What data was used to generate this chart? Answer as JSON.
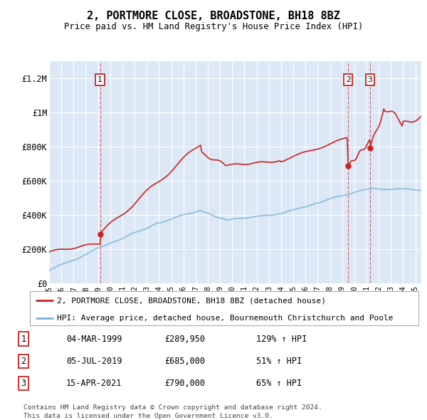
{
  "title": "2, PORTMORE CLOSE, BROADSTONE, BH18 8BZ",
  "subtitle": "Price paid vs. HM Land Registry's House Price Index (HPI)",
  "plot_bg_color": "#dce8f5",
  "red_line_label": "2, PORTMORE CLOSE, BROADSTONE, BH18 8BZ (detached house)",
  "blue_line_label": "HPI: Average price, detached house, Bournemouth Christchurch and Poole",
  "footer": "Contains HM Land Registry data © Crown copyright and database right 2024.\nThis data is licensed under the Open Government Licence v3.0.",
  "transactions": [
    {
      "num": 1,
      "date": "04-MAR-1999",
      "price": 289950,
      "hpi_pct": "129% ↑ HPI",
      "year": 1999.17
    },
    {
      "num": 2,
      "date": "05-JUL-2019",
      "price": 685000,
      "hpi_pct": "51% ↑ HPI",
      "year": 2019.5
    },
    {
      "num": 3,
      "date": "15-APR-2021",
      "price": 790000,
      "hpi_pct": "65% ↑ HPI",
      "year": 2021.29
    }
  ],
  "ylim": [
    0,
    1300000
  ],
  "xlim_start": 1995.0,
  "xlim_end": 2025.5,
  "yticks": [
    0,
    200000,
    400000,
    600000,
    800000,
    1000000,
    1200000
  ],
  "ytick_labels": [
    "£0",
    "£200K",
    "£400K",
    "£600K",
    "£800K",
    "£1M",
    "£1.2M"
  ],
  "table_rows": [
    [
      "1",
      "04-MAR-1999",
      "£289,950",
      "129% ↑ HPI"
    ],
    [
      "2",
      "05-JUL-2019",
      "£685,000",
      "51% ↑ HPI"
    ],
    [
      "3",
      "15-APR-2021",
      "£790,000",
      "65% ↑ HPI"
    ]
  ]
}
